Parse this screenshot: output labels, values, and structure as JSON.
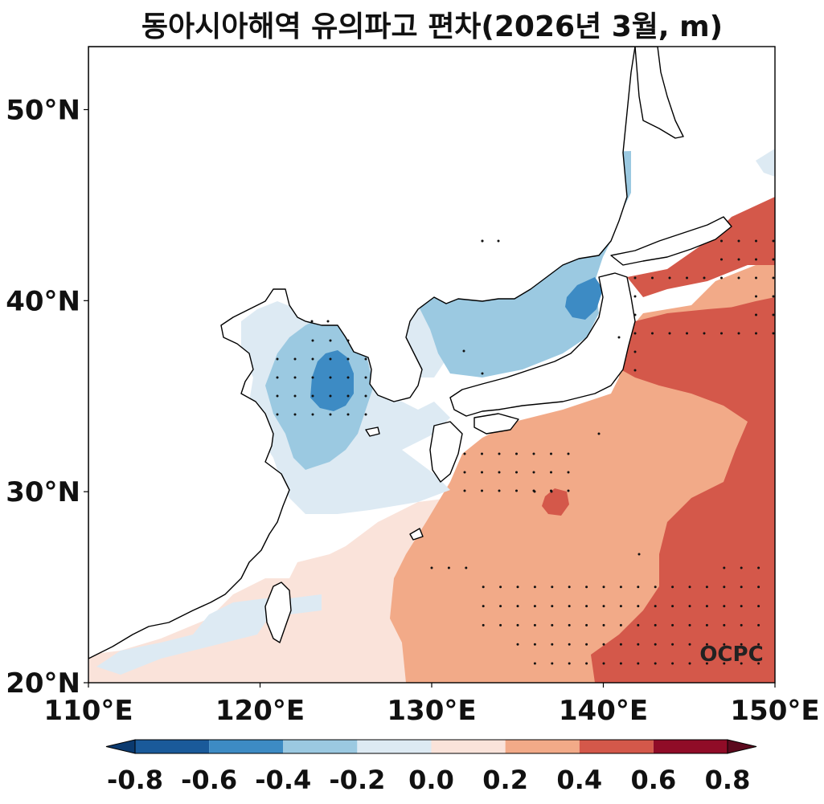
{
  "title": "동아시아해역 유의파고 편차(2026년 3월, m)",
  "map": {
    "lon_range": [
      110,
      150
    ],
    "lat_range": [
      20,
      53.3
    ],
    "x_ticks": [
      "110°E",
      "120°E",
      "130°E",
      "140°E",
      "150°E"
    ],
    "y_ticks": [
      "20°N",
      "30°N",
      "40°N",
      "50°N"
    ],
    "logo": "OCPC"
  },
  "colorbar": {
    "labels": [
      "-0.8",
      "-0.6",
      "-0.4",
      "-0.2",
      "0.0",
      "0.2",
      "0.4",
      "0.6",
      "0.8"
    ],
    "colors": [
      "#0b3a6f",
      "#1a5a9a",
      "#3d8bc4",
      "#9bc9e1",
      "#ddeaf3",
      "#fae3da",
      "#f2aa88",
      "#d4584a",
      "#900c27",
      "#5c0a1e"
    ],
    "extend": "both"
  },
  "legend_unit": "m"
}
